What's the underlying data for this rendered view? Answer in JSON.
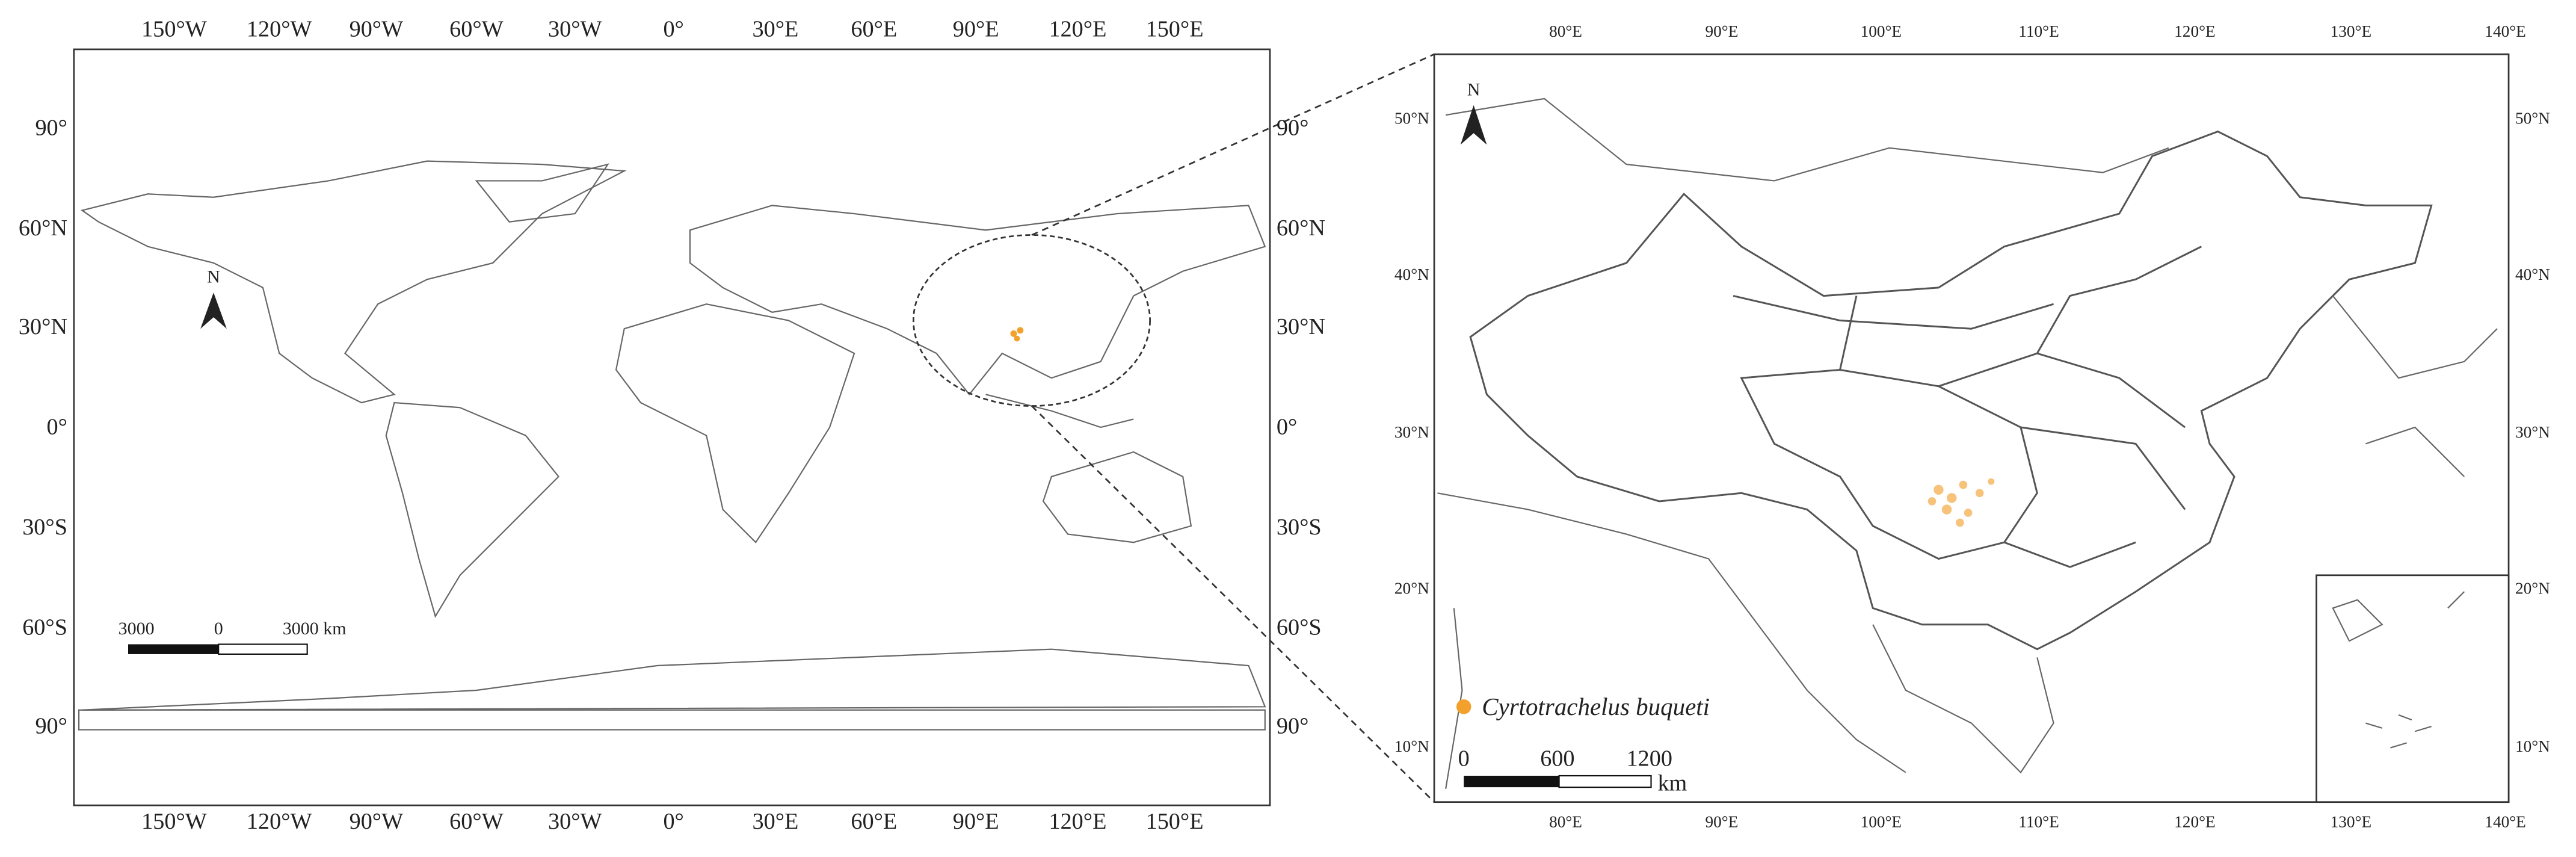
{
  "world_map": {
    "top_labels": [
      "150°W",
      "120°W",
      "90°W",
      "60°W",
      "30°W",
      "0°",
      "30°E",
      "60°E",
      "90°E",
      "120°E",
      "150°E"
    ],
    "bottom_labels": [
      "150°W",
      "120°W",
      "90°W",
      "60°W",
      "30°W",
      "0°",
      "30°E",
      "60°E",
      "90°E",
      "120°E",
      "150°E"
    ],
    "left_labels": [
      "90°",
      "60°N",
      "30°N",
      "0°",
      "30°S",
      "60°S",
      "90°"
    ],
    "right_labels": [
      "90°",
      "60°N",
      "30°N",
      "0°",
      "30°S",
      "60°S",
      "90°"
    ],
    "north": "N",
    "scale_bar": [
      "3000",
      "0",
      "3000 km"
    ]
  },
  "china_map": {
    "top_labels": [
      "80°E",
      "90°E",
      "100°E",
      "110°E",
      "120°E",
      "130°E",
      "140°E"
    ],
    "bottom_labels": [
      "80°E",
      "90°E",
      "100°E",
      "110°E",
      "120°E",
      "130°E",
      "140°E"
    ],
    "left_labels": [
      "50°N",
      "40°N",
      "30°N",
      "20°N",
      "10°N"
    ],
    "right_labels": [
      "50°N",
      "40°N",
      "30°N",
      "20°N",
      "10°N"
    ],
    "north": "N",
    "scale_bar": [
      "0",
      "600",
      "1200",
      "km"
    ],
    "legend": "Cyrtotrachelus buqueti"
  }
}
